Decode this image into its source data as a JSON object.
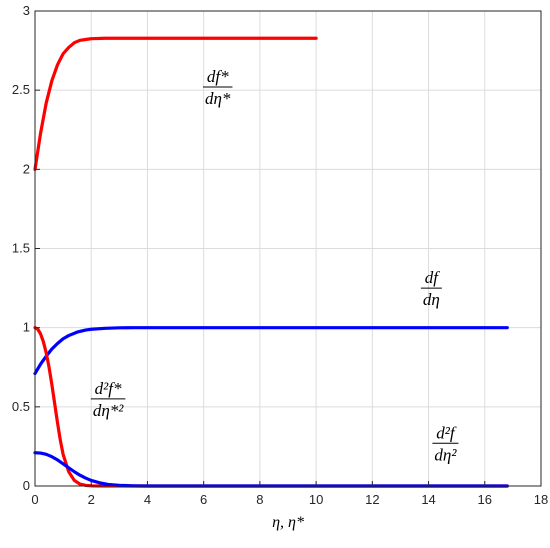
{
  "chart_data": {
    "type": "line",
    "xlabel": "η, η*",
    "ylabel": "",
    "xlim": [
      0,
      18
    ],
    "ylim": [
      0,
      3
    ],
    "xticks": [
      0,
      2,
      4,
      6,
      8,
      10,
      12,
      14,
      16,
      18
    ],
    "yticks": [
      0,
      0.5,
      1,
      1.5,
      2,
      2.5,
      3
    ],
    "ytick_labels": [
      "0",
      "0.5",
      "1",
      "1.5",
      "2",
      "2.5",
      "3"
    ],
    "grid": true,
    "series": [
      {
        "color": "#ff0000",
        "x": [
          0,
          0.2,
          0.4,
          0.6,
          0.8,
          1.0,
          1.2,
          1.4,
          1.6,
          1.8,
          2.0,
          2.5,
          3.0,
          4.0,
          5.0,
          6.0,
          7.0,
          8.0,
          9.0,
          10.0
        ],
        "values": [
          2.0,
          2.23,
          2.42,
          2.56,
          2.66,
          2.73,
          2.77,
          2.8,
          2.815,
          2.82,
          2.825,
          2.828,
          2.828,
          2.828,
          2.828,
          2.828,
          2.828,
          2.828,
          2.828,
          2.828
        ]
      },
      {
        "color": "#0000ff",
        "x": [
          0,
          0.2,
          0.4,
          0.6,
          0.8,
          1.0,
          1.2,
          1.5,
          1.8,
          2.0,
          2.5,
          3.0,
          3.5,
          4.0,
          6.0,
          8.0,
          10.0,
          12.0,
          14.0,
          16.0,
          16.8
        ],
        "values": [
          0.71,
          0.77,
          0.82,
          0.865,
          0.9,
          0.93,
          0.95,
          0.972,
          0.985,
          0.99,
          0.996,
          0.999,
          1.0,
          1.0,
          1.0,
          1.0,
          1.0,
          1.0,
          1.0,
          1.0,
          1.0
        ]
      },
      {
        "color": "#ff0000",
        "x": [
          0,
          0.1,
          0.2,
          0.3,
          0.4,
          0.5,
          0.6,
          0.7,
          0.8,
          0.9,
          1.0,
          1.2,
          1.4,
          1.6,
          1.8,
          2.0,
          2.5,
          3.0,
          4.0,
          6.0,
          8.0,
          10.0,
          12.0,
          14.0,
          16.0,
          16.8
        ],
        "values": [
          1.0,
          0.99,
          0.96,
          0.91,
          0.84,
          0.75,
          0.64,
          0.52,
          0.4,
          0.29,
          0.2,
          0.09,
          0.035,
          0.012,
          0.004,
          0.001,
          0.0,
          0.0,
          0.0,
          0.0,
          0.0,
          0.0,
          0.0,
          0.0,
          0.0,
          0.0
        ]
      },
      {
        "color": "#0000ff",
        "x": [
          0,
          0.2,
          0.4,
          0.6,
          0.8,
          1.0,
          1.2,
          1.4,
          1.6,
          1.8,
          2.0,
          2.3,
          2.6,
          3.0,
          3.5,
          4.0,
          6.0,
          8.0,
          10.0,
          12.0,
          14.0,
          16.0,
          16.8
        ],
        "values": [
          0.21,
          0.208,
          0.2,
          0.185,
          0.165,
          0.14,
          0.115,
          0.09,
          0.068,
          0.05,
          0.035,
          0.02,
          0.01,
          0.004,
          0.001,
          0.0,
          0.0,
          0.0,
          0.0,
          0.0,
          0.0,
          0.0,
          0.0
        ]
      }
    ],
    "annotations": {
      "df_star": {
        "num": "df*",
        "den": "dη*",
        "x": 6.5,
        "y": 2.52
      },
      "df": {
        "num": "df",
        "den": "dη",
        "x": 14.1,
        "y": 1.25
      },
      "d2f_star": {
        "num": "d²f*",
        "den": "dη*²",
        "x": 2.6,
        "y": 0.55
      },
      "d2f": {
        "num": "d²f",
        "den": "dη²",
        "x": 14.6,
        "y": 0.27
      }
    }
  }
}
